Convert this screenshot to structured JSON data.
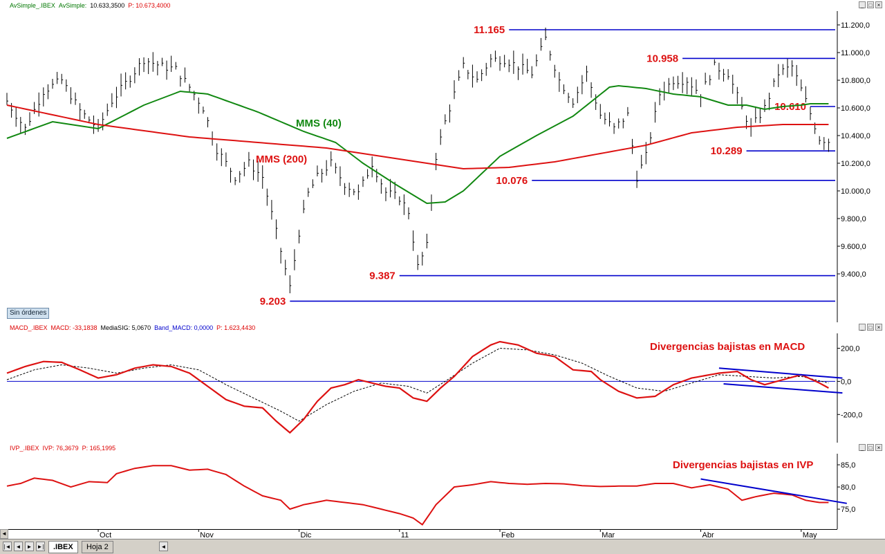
{
  "panels": {
    "price": {
      "header": [
        {
          "text": "AvSimple_.IBEX",
          "color": "#007700"
        },
        {
          "text": "AvSimple:",
          "color": "#007700"
        },
        {
          "text": "10.633,3500",
          "color": "#000000"
        },
        {
          "text": "P: 10.673,4000",
          "color": "#dd0000"
        }
      ]
    },
    "macd": {
      "header": [
        {
          "text": "MACD_.IBEX",
          "color": "#dd0000"
        },
        {
          "text": "MACD: -33,1838",
          "color": "#dd0000"
        },
        {
          "text": "MediaSIG: 5,0670",
          "color": "#000000"
        },
        {
          "text": "Band_MACD: 0,0000",
          "color": "#0000cc"
        },
        {
          "text": "P: 1.623,4430",
          "color": "#dd0000"
        }
      ]
    },
    "ivp": {
      "header": [
        {
          "text": "IVP_.IBEX",
          "color": "#dd0000"
        },
        {
          "text": "IVP: 76,3679",
          "color": "#dd0000"
        },
        {
          "text": "P: 165,1995",
          "color": "#dd0000"
        }
      ]
    }
  },
  "sin_ordenes": "Sin órdenes",
  "tabs": [
    ".IBEX",
    "Hoja 2"
  ],
  "chart_data": [
    {
      "type": "bar",
      "price_range": [
        9203,
        11165
      ],
      "ylim": [
        9050,
        11300
      ],
      "y_ticks": [
        "11.200,0",
        "11.000,0",
        "10.800,0",
        "10.600,0",
        "10.400,0",
        "10.200,0",
        "10.000,0",
        "9.800,0",
        "9.600,0",
        "9.400,0"
      ],
      "y_tick_values": [
        11200,
        11000,
        10800,
        10600,
        10400,
        10200,
        10000,
        9800,
        9600,
        9400
      ],
      "x_labels": [
        "Oct",
        "Nov",
        "Dic",
        "11",
        "Feb",
        "Mar",
        "Abr",
        "May"
      ],
      "x_label_index": [
        20,
        42,
        64,
        86,
        108,
        130,
        152,
        174
      ],
      "n_bars": 182,
      "levels": [
        {
          "label": "11.165",
          "value": 11165,
          "from_index": 110
        },
        {
          "label": "10.958",
          "value": 10958,
          "from_index": 148
        },
        {
          "label": "10.610",
          "value": 10610,
          "from_index": 176
        },
        {
          "label": "10.289",
          "value": 10289,
          "from_index": 162
        },
        {
          "label": "10.076",
          "value": 10076,
          "from_index": 115
        },
        {
          "label": "9.387",
          "value": 9387,
          "from_index": 86
        },
        {
          "label": "9.203",
          "value": 9203,
          "from_index": 62
        }
      ],
      "close_anchors": [
        [
          0,
          10650
        ],
        [
          4,
          10450
        ],
        [
          8,
          10720
        ],
        [
          12,
          10800
        ],
        [
          16,
          10580
        ],
        [
          20,
          10450
        ],
        [
          23,
          10650
        ],
        [
          27,
          10820
        ],
        [
          30,
          10950
        ],
        [
          34,
          10900
        ],
        [
          37,
          10880
        ],
        [
          40,
          10750
        ],
        [
          43,
          10600
        ],
        [
          46,
          10300
        ],
        [
          50,
          10100
        ],
        [
          53,
          10200
        ],
        [
          56,
          10100
        ],
        [
          59,
          9700
        ],
        [
          62,
          9300
        ],
        [
          64,
          9700
        ],
        [
          66,
          9980
        ],
        [
          68,
          10100
        ],
        [
          71,
          10200
        ],
        [
          74,
          10050
        ],
        [
          77,
          9980
        ],
        [
          80,
          10200
        ],
        [
          83,
          9990
        ],
        [
          86,
          9950
        ],
        [
          88,
          9850
        ],
        [
          90,
          9450
        ],
        [
          92,
          9600
        ],
        [
          94,
          10250
        ],
        [
          96,
          10500
        ],
        [
          98,
          10700
        ],
        [
          100,
          10900
        ],
        [
          103,
          10800
        ],
        [
          106,
          10950
        ],
        [
          109,
          10950
        ],
        [
          112,
          10900
        ],
        [
          115,
          10850
        ],
        [
          118,
          11100
        ],
        [
          121,
          10800
        ],
        [
          124,
          10650
        ],
        [
          127,
          10850
        ],
        [
          130,
          10550
        ],
        [
          133,
          10450
        ],
        [
          136,
          10550
        ],
        [
          138,
          10100
        ],
        [
          140,
          10250
        ],
        [
          143,
          10700
        ],
        [
          146,
          10800
        ],
        [
          149,
          10800
        ],
        [
          152,
          10700
        ],
        [
          155,
          10900
        ],
        [
          158,
          10850
        ],
        [
          161,
          10600
        ],
        [
          163,
          10450
        ],
        [
          166,
          10600
        ],
        [
          169,
          10850
        ],
        [
          172,
          10900
        ],
        [
          175,
          10650
        ],
        [
          178,
          10380
        ],
        [
          180,
          10360
        ]
      ],
      "series": [
        {
          "name": "MMS (40)",
          "color": "#118811",
          "anchors": [
            [
              0,
              10380
            ],
            [
              10,
              10500
            ],
            [
              20,
              10450
            ],
            [
              30,
              10620
            ],
            [
              38,
              10720
            ],
            [
              44,
              10700
            ],
            [
              55,
              10570
            ],
            [
              65,
              10430
            ],
            [
              72,
              10350
            ],
            [
              78,
              10200
            ],
            [
              85,
              10050
            ],
            [
              92,
              9910
            ],
            [
              96,
              9920
            ],
            [
              100,
              10000
            ],
            [
              108,
              10250
            ],
            [
              116,
              10400
            ],
            [
              124,
              10540
            ],
            [
              132,
              10750
            ],
            [
              134,
              10760
            ],
            [
              140,
              10740
            ],
            [
              146,
              10700
            ],
            [
              152,
              10680
            ],
            [
              158,
              10620
            ],
            [
              162,
              10620
            ],
            [
              166,
              10590
            ],
            [
              170,
              10610
            ],
            [
              174,
              10620
            ],
            [
              176,
              10630
            ],
            [
              180,
              10630
            ]
          ]
        },
        {
          "name": "MMS (200)",
          "color": "#dd1111",
          "anchors": [
            [
              0,
              10620
            ],
            [
              20,
              10480
            ],
            [
              40,
              10390
            ],
            [
              55,
              10350
            ],
            [
              70,
              10310
            ],
            [
              80,
              10260
            ],
            [
              92,
              10200
            ],
            [
              100,
              10160
            ],
            [
              110,
              10170
            ],
            [
              120,
              10210
            ],
            [
              130,
              10270
            ],
            [
              140,
              10330
            ],
            [
              150,
              10420
            ],
            [
              160,
              10460
            ],
            [
              170,
              10480
            ],
            [
              180,
              10480
            ]
          ]
        }
      ],
      "annotations": [
        {
          "text": "MMS (40)",
          "color": "#118811"
        },
        {
          "text": "MMS (200)",
          "color": "#dd1111"
        }
      ]
    },
    {
      "type": "line",
      "title": "Divergencias bajistas en MACD",
      "ylim": [
        -370,
        290
      ],
      "y_ticks": [
        "200,0",
        "0,0",
        "-200,0"
      ],
      "y_tick_values": [
        200,
        0,
        -200
      ],
      "series": [
        {
          "name": "MACD",
          "color": "#dd1111",
          "anchors": [
            [
              0,
              50
            ],
            [
              4,
              90
            ],
            [
              8,
              120
            ],
            [
              12,
              115
            ],
            [
              16,
              70
            ],
            [
              20,
              20
            ],
            [
              24,
              40
            ],
            [
              28,
              80
            ],
            [
              32,
              100
            ],
            [
              36,
              90
            ],
            [
              40,
              50
            ],
            [
              44,
              -30
            ],
            [
              48,
              -110
            ],
            [
              52,
              -150
            ],
            [
              56,
              -160
            ],
            [
              59,
              -240
            ],
            [
              62,
              -310
            ],
            [
              65,
              -230
            ],
            [
              68,
              -120
            ],
            [
              71,
              -40
            ],
            [
              74,
              -20
            ],
            [
              77,
              10
            ],
            [
              80,
              -10
            ],
            [
              83,
              -30
            ],
            [
              86,
              -40
            ],
            [
              89,
              -100
            ],
            [
              92,
              -120
            ],
            [
              95,
              -40
            ],
            [
              98,
              30
            ],
            [
              102,
              150
            ],
            [
              106,
              220
            ],
            [
              108,
              240
            ],
            [
              112,
              220
            ],
            [
              116,
              170
            ],
            [
              120,
              150
            ],
            [
              124,
              70
            ],
            [
              128,
              60
            ],
            [
              130,
              10
            ],
            [
              134,
              -60
            ],
            [
              138,
              -100
            ],
            [
              142,
              -90
            ],
            [
              146,
              -20
            ],
            [
              150,
              20
            ],
            [
              154,
              40
            ],
            [
              156,
              50
            ],
            [
              160,
              60
            ],
            [
              163,
              10
            ],
            [
              166,
              -20
            ],
            [
              170,
              10
            ],
            [
              174,
              40
            ],
            [
              178,
              -10
            ],
            [
              180,
              -40
            ]
          ]
        },
        {
          "name": "MediaSIG",
          "color": "#000000",
          "anchors": [
            [
              0,
              10
            ],
            [
              6,
              70
            ],
            [
              12,
              100
            ],
            [
              18,
              80
            ],
            [
              24,
              50
            ],
            [
              30,
              80
            ],
            [
              36,
              100
            ],
            [
              42,
              70
            ],
            [
              48,
              -20
            ],
            [
              54,
              -100
            ],
            [
              60,
              -180
            ],
            [
              64,
              -240
            ],
            [
              70,
              -140
            ],
            [
              76,
              -60
            ],
            [
              82,
              -10
            ],
            [
              88,
              -30
            ],
            [
              92,
              -70
            ],
            [
              96,
              0
            ],
            [
              102,
              110
            ],
            [
              108,
              200
            ],
            [
              114,
              190
            ],
            [
              120,
              160
            ],
            [
              126,
              110
            ],
            [
              132,
              30
            ],
            [
              138,
              -40
            ],
            [
              144,
              -60
            ],
            [
              150,
              -10
            ],
            [
              156,
              40
            ],
            [
              162,
              30
            ],
            [
              168,
              20
            ],
            [
              174,
              30
            ],
            [
              180,
              -10
            ]
          ]
        }
      ],
      "trendlines": [
        [
          [
            156,
            80
          ],
          [
            180,
            20
          ]
        ],
        [
          [
            157,
            -15
          ],
          [
            180,
            -70
          ]
        ]
      ]
    },
    {
      "type": "line",
      "title": "Divergencias bajistas en IVP",
      "ylim": [
        70.5,
        87.5
      ],
      "y_ticks": [
        "85,0",
        "80,0",
        "75,0"
      ],
      "y_tick_values": [
        85,
        80,
        75
      ],
      "series": [
        {
          "name": "IVP",
          "color": "#dd1111",
          "anchors": [
            [
              0,
              80.2
            ],
            [
              3,
              80.8
            ],
            [
              6,
              82
            ],
            [
              10,
              81.5
            ],
            [
              14,
              80
            ],
            [
              18,
              81.2
            ],
            [
              22,
              81
            ],
            [
              24,
              83
            ],
            [
              28,
              84.2
            ],
            [
              32,
              84.8
            ],
            [
              36,
              84.8
            ],
            [
              40,
              83.8
            ],
            [
              44,
              84
            ],
            [
              48,
              82.8
            ],
            [
              52,
              80.2
            ],
            [
              56,
              78
            ],
            [
              60,
              77
            ],
            [
              62,
              75
            ],
            [
              65,
              76
            ],
            [
              70,
              77
            ],
            [
              74,
              76.5
            ],
            [
              78,
              76
            ],
            [
              82,
              75
            ],
            [
              86,
              74
            ],
            [
              89,
              73
            ],
            [
              91,
              71.5
            ],
            [
              94,
              76
            ],
            [
              98,
              80
            ],
            [
              102,
              80.5
            ],
            [
              106,
              81.2
            ],
            [
              110,
              80.8
            ],
            [
              114,
              80.6
            ],
            [
              118,
              80.8
            ],
            [
              122,
              80.7
            ],
            [
              126,
              80.3
            ],
            [
              130,
              80.1
            ],
            [
              134,
              80.2
            ],
            [
              138,
              80.2
            ],
            [
              142,
              80.8
            ],
            [
              146,
              80.8
            ],
            [
              150,
              79.8
            ],
            [
              154,
              80.5
            ],
            [
              158,
              79.5
            ],
            [
              161,
              77
            ],
            [
              164,
              77.8
            ],
            [
              168,
              78.6
            ],
            [
              172,
              78.2
            ],
            [
              175,
              77
            ],
            [
              178,
              76.5
            ],
            [
              180,
              76.5
            ]
          ]
        }
      ],
      "trendlines": [
        [
          [
            152,
            81.8
          ],
          [
            184,
            76.3
          ]
        ]
      ]
    }
  ]
}
